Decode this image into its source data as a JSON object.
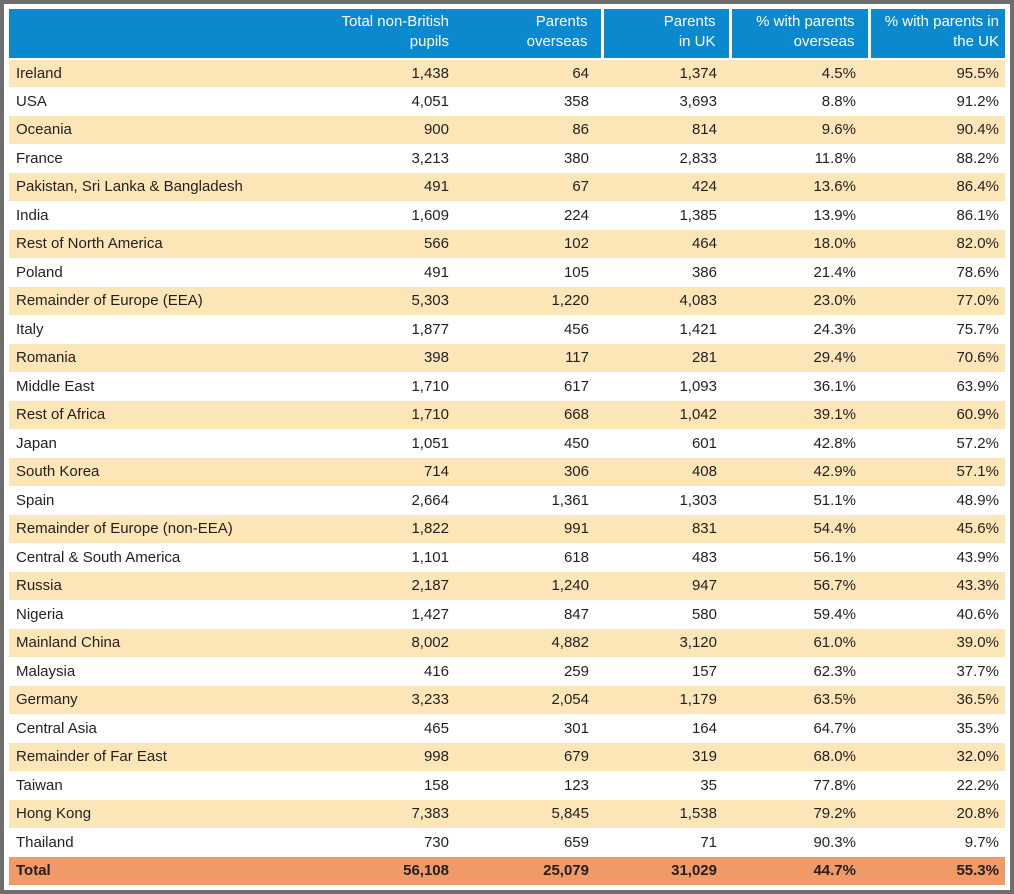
{
  "colors": {
    "header_bg": "#0B89CF",
    "header_text": "#FFFFFF",
    "stripe_bg": "#FCE6B8",
    "row_bg": "#FFFFFF",
    "total_bg": "#F09A68",
    "text": "#231F20",
    "frame_border": "#6E6E6E"
  },
  "table": {
    "header_cells": [
      "",
      "Total non-British\npupils",
      "Parents\noverseas",
      "Parents\nin UK",
      "% with parents\noverseas",
      "% with parents in\nthe UK"
    ],
    "rows": [
      {
        "label": "Ireland",
        "values": [
          "1,438",
          "64",
          "1,374",
          "4.5%",
          "95.5%"
        ]
      },
      {
        "label": "USA",
        "values": [
          "4,051",
          "358",
          "3,693",
          "8.8%",
          "91.2%"
        ]
      },
      {
        "label": "Oceania",
        "values": [
          "900",
          "86",
          "814",
          "9.6%",
          "90.4%"
        ]
      },
      {
        "label": "France",
        "values": [
          "3,213",
          "380",
          "2,833",
          "11.8%",
          "88.2%"
        ]
      },
      {
        "label": "Pakistan, Sri Lanka & Bangladesh",
        "values": [
          "491",
          "67",
          "424",
          "13.6%",
          "86.4%"
        ]
      },
      {
        "label": "India",
        "values": [
          "1,609",
          "224",
          "1,385",
          "13.9%",
          "86.1%"
        ]
      },
      {
        "label": "Rest of North America",
        "values": [
          "566",
          "102",
          "464",
          "18.0%",
          "82.0%"
        ]
      },
      {
        "label": "Poland",
        "values": [
          "491",
          "105",
          "386",
          "21.4%",
          "78.6%"
        ]
      },
      {
        "label": "Remainder of Europe (EEA)",
        "values": [
          "5,303",
          "1,220",
          "4,083",
          "23.0%",
          "77.0%"
        ]
      },
      {
        "label": "Italy",
        "values": [
          "1,877",
          "456",
          "1,421",
          "24.3%",
          "75.7%"
        ]
      },
      {
        "label": "Romania",
        "values": [
          "398",
          "117",
          "281",
          "29.4%",
          "70.6%"
        ]
      },
      {
        "label": "Middle East",
        "values": [
          "1,710",
          "617",
          "1,093",
          "36.1%",
          "63.9%"
        ]
      },
      {
        "label": "Rest of Africa",
        "values": [
          "1,710",
          "668",
          "1,042",
          "39.1%",
          "60.9%"
        ]
      },
      {
        "label": "Japan",
        "values": [
          "1,051",
          "450",
          "601",
          "42.8%",
          "57.2%"
        ]
      },
      {
        "label": "South Korea",
        "values": [
          "714",
          "306",
          "408",
          "42.9%",
          "57.1%"
        ]
      },
      {
        "label": "Spain",
        "values": [
          "2,664",
          "1,361",
          "1,303",
          "51.1%",
          "48.9%"
        ]
      },
      {
        "label": "Remainder of Europe (non-EEA)",
        "values": [
          "1,822",
          "991",
          "831",
          "54.4%",
          "45.6%"
        ]
      },
      {
        "label": "Central & South America",
        "values": [
          "1,101",
          "618",
          "483",
          "56.1%",
          "43.9%"
        ]
      },
      {
        "label": "Russia",
        "values": [
          "2,187",
          "1,240",
          "947",
          "56.7%",
          "43.3%"
        ]
      },
      {
        "label": "Nigeria",
        "values": [
          "1,427",
          "847",
          "580",
          "59.4%",
          "40.6%"
        ]
      },
      {
        "label": "Mainland China",
        "values": [
          "8,002",
          "4,882",
          "3,120",
          "61.0%",
          "39.0%"
        ]
      },
      {
        "label": "Malaysia",
        "values": [
          "416",
          "259",
          "157",
          "62.3%",
          "37.7%"
        ]
      },
      {
        "label": "Germany",
        "values": [
          "3,233",
          "2,054",
          "1,179",
          "63.5%",
          "36.5%"
        ]
      },
      {
        "label": "Central Asia",
        "values": [
          "465",
          "301",
          "164",
          "64.7%",
          "35.3%"
        ]
      },
      {
        "label": "Remainder of Far East",
        "values": [
          "998",
          "679",
          "319",
          "68.0%",
          "32.0%"
        ]
      },
      {
        "label": "Taiwan",
        "values": [
          "158",
          "123",
          "35",
          "77.8%",
          "22.2%"
        ]
      },
      {
        "label": "Hong Kong",
        "values": [
          "7,383",
          "5,845",
          "1,538",
          "79.2%",
          "20.8%"
        ]
      },
      {
        "label": "Thailand",
        "values": [
          "730",
          "659",
          "71",
          "90.3%",
          "9.7%"
        ]
      }
    ],
    "total": {
      "label": "Total",
      "values": [
        "56,108",
        "25,079",
        "31,029",
        "44.7%",
        "55.3%"
      ]
    }
  },
  "chart_data": {
    "type": "table",
    "columns": [
      "",
      "Total non-British pupils",
      "Parents overseas",
      "Parents in UK",
      "% with parents overseas",
      "% with parents in the UK"
    ],
    "rows": [
      {
        "label": "Ireland",
        "total_non_british_pupils": 1438,
        "parents_overseas": 64,
        "parents_in_uk": 1374,
        "pct_parents_overseas": 4.5,
        "pct_parents_in_uk": 95.5
      },
      {
        "label": "USA",
        "total_non_british_pupils": 4051,
        "parents_overseas": 358,
        "parents_in_uk": 3693,
        "pct_parents_overseas": 8.8,
        "pct_parents_in_uk": 91.2
      },
      {
        "label": "Oceania",
        "total_non_british_pupils": 900,
        "parents_overseas": 86,
        "parents_in_uk": 814,
        "pct_parents_overseas": 9.6,
        "pct_parents_in_uk": 90.4
      },
      {
        "label": "France",
        "total_non_british_pupils": 3213,
        "parents_overseas": 380,
        "parents_in_uk": 2833,
        "pct_parents_overseas": 11.8,
        "pct_parents_in_uk": 88.2
      },
      {
        "label": "Pakistan, Sri Lanka & Bangladesh",
        "total_non_british_pupils": 491,
        "parents_overseas": 67,
        "parents_in_uk": 424,
        "pct_parents_overseas": 13.6,
        "pct_parents_in_uk": 86.4
      },
      {
        "label": "India",
        "total_non_british_pupils": 1609,
        "parents_overseas": 224,
        "parents_in_uk": 1385,
        "pct_parents_overseas": 13.9,
        "pct_parents_in_uk": 86.1
      },
      {
        "label": "Rest of North America",
        "total_non_british_pupils": 566,
        "parents_overseas": 102,
        "parents_in_uk": 464,
        "pct_parents_overseas": 18.0,
        "pct_parents_in_uk": 82.0
      },
      {
        "label": "Poland",
        "total_non_british_pupils": 491,
        "parents_overseas": 105,
        "parents_in_uk": 386,
        "pct_parents_overseas": 21.4,
        "pct_parents_in_uk": 78.6
      },
      {
        "label": "Remainder of Europe (EEA)",
        "total_non_british_pupils": 5303,
        "parents_overseas": 1220,
        "parents_in_uk": 4083,
        "pct_parents_overseas": 23.0,
        "pct_parents_in_uk": 77.0
      },
      {
        "label": "Italy",
        "total_non_british_pupils": 1877,
        "parents_overseas": 456,
        "parents_in_uk": 1421,
        "pct_parents_overseas": 24.3,
        "pct_parents_in_uk": 75.7
      },
      {
        "label": "Romania",
        "total_non_british_pupils": 398,
        "parents_overseas": 117,
        "parents_in_uk": 281,
        "pct_parents_overseas": 29.4,
        "pct_parents_in_uk": 70.6
      },
      {
        "label": "Middle East",
        "total_non_british_pupils": 1710,
        "parents_overseas": 617,
        "parents_in_uk": 1093,
        "pct_parents_overseas": 36.1,
        "pct_parents_in_uk": 63.9
      },
      {
        "label": "Rest of Africa",
        "total_non_british_pupils": 1710,
        "parents_overseas": 668,
        "parents_in_uk": 1042,
        "pct_parents_overseas": 39.1,
        "pct_parents_in_uk": 60.9
      },
      {
        "label": "Japan",
        "total_non_british_pupils": 1051,
        "parents_overseas": 450,
        "parents_in_uk": 601,
        "pct_parents_overseas": 42.8,
        "pct_parents_in_uk": 57.2
      },
      {
        "label": "South Korea",
        "total_non_british_pupils": 714,
        "parents_overseas": 306,
        "parents_in_uk": 408,
        "pct_parents_overseas": 42.9,
        "pct_parents_in_uk": 57.1
      },
      {
        "label": "Spain",
        "total_non_british_pupils": 2664,
        "parents_overseas": 1361,
        "parents_in_uk": 1303,
        "pct_parents_overseas": 51.1,
        "pct_parents_in_uk": 48.9
      },
      {
        "label": "Remainder of Europe (non-EEA)",
        "total_non_british_pupils": 1822,
        "parents_overseas": 991,
        "parents_in_uk": 831,
        "pct_parents_overseas": 54.4,
        "pct_parents_in_uk": 45.6
      },
      {
        "label": "Central & South America",
        "total_non_british_pupils": 1101,
        "parents_overseas": 618,
        "parents_in_uk": 483,
        "pct_parents_overseas": 56.1,
        "pct_parents_in_uk": 43.9
      },
      {
        "label": "Russia",
        "total_non_british_pupils": 2187,
        "parents_overseas": 1240,
        "parents_in_uk": 947,
        "pct_parents_overseas": 56.7,
        "pct_parents_in_uk": 43.3
      },
      {
        "label": "Nigeria",
        "total_non_british_pupils": 1427,
        "parents_overseas": 847,
        "parents_in_uk": 580,
        "pct_parents_overseas": 59.4,
        "pct_parents_in_uk": 40.6
      },
      {
        "label": "Mainland China",
        "total_non_british_pupils": 8002,
        "parents_overseas": 4882,
        "parents_in_uk": 3120,
        "pct_parents_overseas": 61.0,
        "pct_parents_in_uk": 39.0
      },
      {
        "label": "Malaysia",
        "total_non_british_pupils": 416,
        "parents_overseas": 259,
        "parents_in_uk": 157,
        "pct_parents_overseas": 62.3,
        "pct_parents_in_uk": 37.7
      },
      {
        "label": "Germany",
        "total_non_british_pupils": 3233,
        "parents_overseas": 2054,
        "parents_in_uk": 1179,
        "pct_parents_overseas": 63.5,
        "pct_parents_in_uk": 36.5
      },
      {
        "label": "Central Asia",
        "total_non_british_pupils": 465,
        "parents_overseas": 301,
        "parents_in_uk": 164,
        "pct_parents_overseas": 64.7,
        "pct_parents_in_uk": 35.3
      },
      {
        "label": "Remainder of Far East",
        "total_non_british_pupils": 998,
        "parents_overseas": 679,
        "parents_in_uk": 319,
        "pct_parents_overseas": 68.0,
        "pct_parents_in_uk": 32.0
      },
      {
        "label": "Taiwan",
        "total_non_british_pupils": 158,
        "parents_overseas": 123,
        "parents_in_uk": 35,
        "pct_parents_overseas": 77.8,
        "pct_parents_in_uk": 22.2
      },
      {
        "label": "Hong Kong",
        "total_non_british_pupils": 7383,
        "parents_overseas": 5845,
        "parents_in_uk": 1538,
        "pct_parents_overseas": 79.2,
        "pct_parents_in_uk": 20.8
      },
      {
        "label": "Thailand",
        "total_non_british_pupils": 730,
        "parents_overseas": 659,
        "parents_in_uk": 71,
        "pct_parents_overseas": 90.3,
        "pct_parents_in_uk": 9.7
      }
    ],
    "total_row": {
      "label": "Total",
      "total_non_british_pupils": 56108,
      "parents_overseas": 25079,
      "parents_in_uk": 31029,
      "pct_parents_overseas": 44.7,
      "pct_parents_in_uk": 55.3
    }
  }
}
